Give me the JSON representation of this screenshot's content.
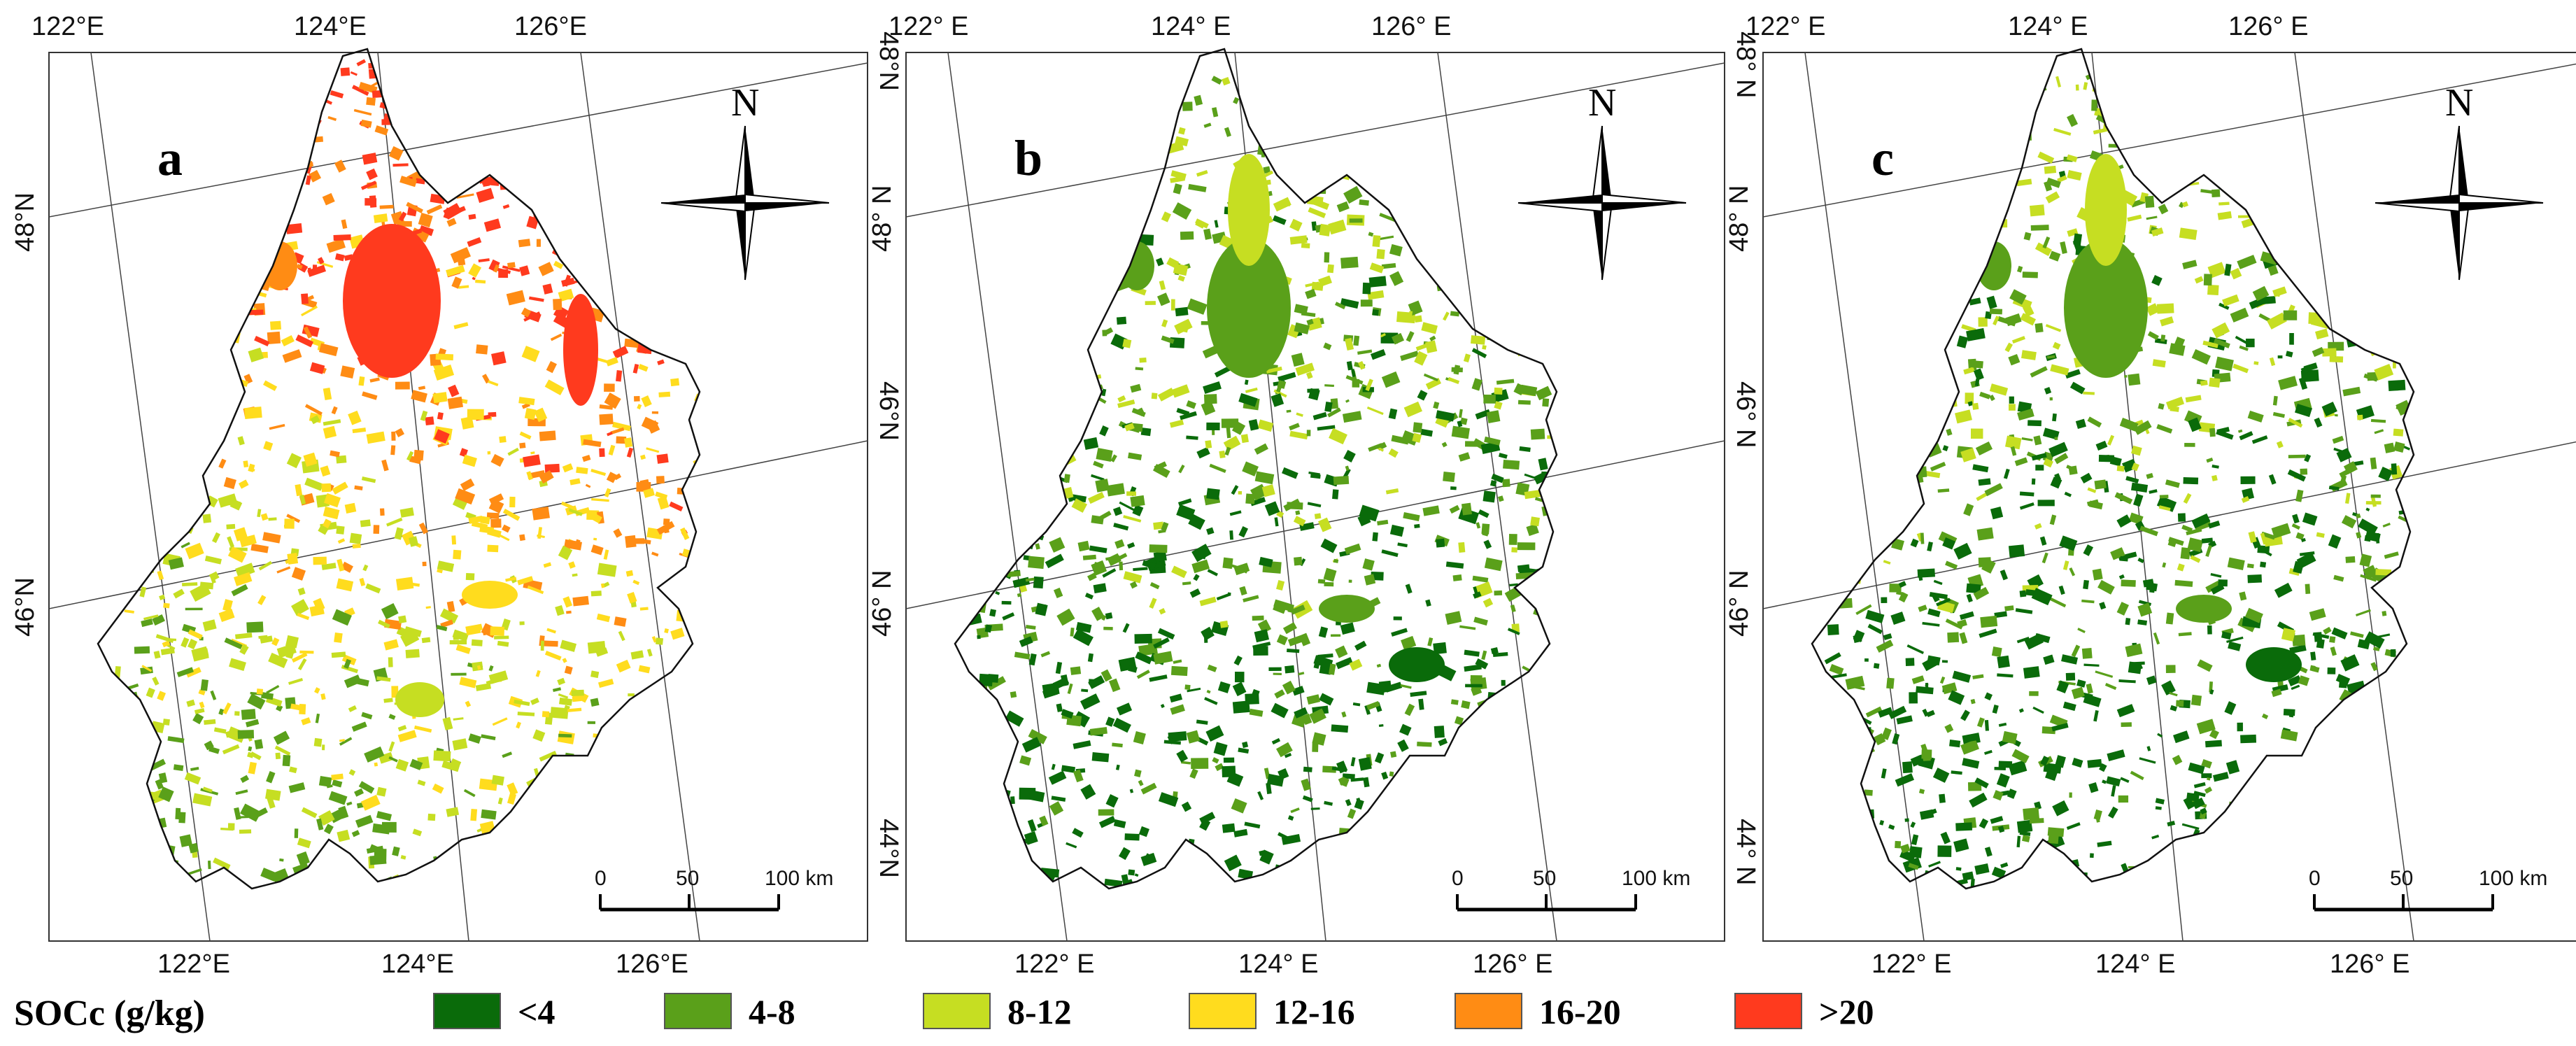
{
  "panels": [
    {
      "id": "a",
      "letter": "a",
      "legend_mix": [
        "4-8",
        "8-12",
        "12-16",
        "16-20",
        ">20"
      ]
    },
    {
      "id": "b",
      "letter": "b",
      "legend_mix": [
        "<4",
        "4-8",
        "8-12"
      ]
    },
    {
      "id": "c",
      "letter": "c",
      "legend_mix": [
        "<4",
        "4-8",
        "8-12"
      ]
    }
  ],
  "axes": {
    "top": [
      "122°E",
      "124°E",
      "126°E"
    ],
    "top_bc": [
      "122° E",
      "124° E",
      "126° E"
    ],
    "bottom": [
      "122°E",
      "124°E",
      "126°E"
    ],
    "bottom_bc": [
      "122° E",
      "124° E",
      "126° E"
    ],
    "left": [
      "48°N",
      "46°N"
    ],
    "left_bc": [
      "48° N",
      "46° N"
    ],
    "right": [
      "48°N",
      "46°N",
      "44°N"
    ],
    "right_bc": [
      "48° N",
      "46° N",
      "44° N"
    ]
  },
  "north_label": "N",
  "scale_bar": {
    "labels": [
      "0",
      "50",
      "100 km"
    ]
  },
  "legend": {
    "title": "SOCc  (g/kg)",
    "items": [
      {
        "label": "<4",
        "color": "#0a6b0a"
      },
      {
        "label": "4-8",
        "color": "#5aa01a"
      },
      {
        "label": "8-12",
        "color": "#c6de22"
      },
      {
        "label": "12-16",
        "color": "#ffdc1e"
      },
      {
        "label": "16-20",
        "color": "#ff8c14"
      },
      {
        "label": ">20",
        "color": "#ff3a1e"
      }
    ]
  }
}
